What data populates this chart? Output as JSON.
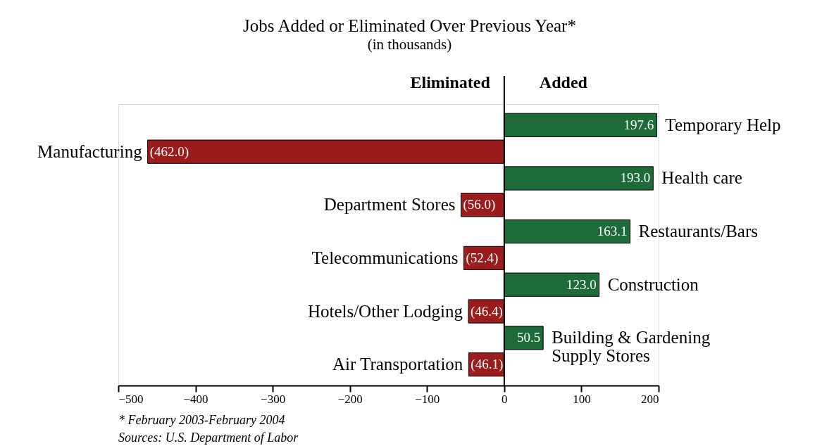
{
  "chart_data": {
    "type": "bar",
    "orientation": "horizontal",
    "title": "Jobs Added or Eliminated Over Previous Year*",
    "subtitle": "(in thousands)",
    "categories": [
      "Temporary Help",
      "Manufacturing",
      "Health care",
      "Department Stores",
      "Restaurants/Bars",
      "Telecommunications",
      "Construction",
      "Hotels/Other Lodging",
      "Building & Gardening Supply Stores",
      "Air Transportation"
    ],
    "values": [
      197.6,
      -462.0,
      193.0,
      -56.0,
      163.1,
      -52.4,
      123.0,
      -46.4,
      50.5,
      -46.1
    ],
    "colors": [
      "#1e6b3a",
      "#9b1c1c",
      "#1e6b3a",
      "#9b1c1c",
      "#1e6b3a",
      "#9b1c1c",
      "#1e6b3a",
      "#9b1c1c",
      "#1e6b3a",
      "#9b1c1c"
    ],
    "value_labels": [
      "197.6",
      "(462.0)",
      "193.0",
      "(56.0)",
      "163.1",
      "(52.4)",
      "123.0",
      "(46.4)",
      "50.5",
      "(46.1)"
    ],
    "xlim": [
      -500,
      200
    ],
    "xticks": [
      -500,
      -400,
      -300,
      -200,
      -100,
      0,
      100,
      200
    ],
    "ref_lines": [
      {
        "axis": "x",
        "value": 0,
        "label": null,
        "color": "#000000"
      }
    ],
    "annotations": [
      "Eliminated",
      "Added",
      "* February 2003-February 2004",
      "Sources: U.S. Department of Labor"
    ],
    "grid": false
  }
}
